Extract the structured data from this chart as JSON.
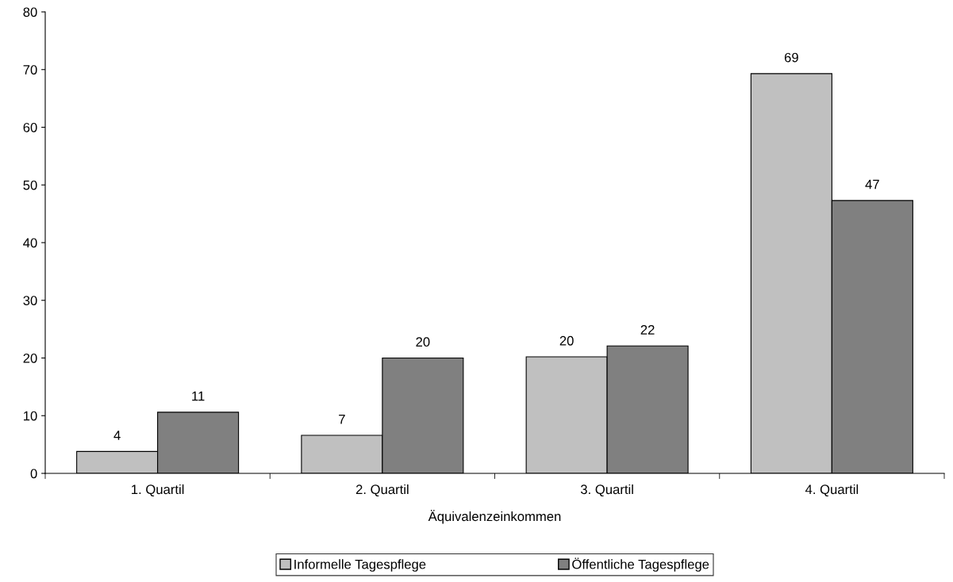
{
  "chart_data": {
    "type": "bar",
    "xlabel": "Äquivalenzeinkommen",
    "categories": [
      "1. Quartil",
      "2. Quartil",
      "3. Quartil",
      "4. Quartil"
    ],
    "series": [
      {
        "name": "Informelle Tagespflege",
        "color": "#c0c0c0",
        "values": [
          3.8,
          6.6,
          20.2,
          69.3
        ],
        "value_labels": [
          "4",
          "7",
          "20",
          "69"
        ]
      },
      {
        "name": "Öffentliche Tagespflege",
        "color": "#808080",
        "values": [
          10.6,
          20.0,
          22.1,
          47.3
        ],
        "value_labels": [
          "11",
          "20",
          "22",
          "47"
        ]
      }
    ],
    "ylim": [
      0,
      80
    ],
    "yticks": [
      0,
      10,
      20,
      30,
      40,
      50,
      60,
      70,
      80
    ],
    "grid": false,
    "legend": "bottom"
  }
}
